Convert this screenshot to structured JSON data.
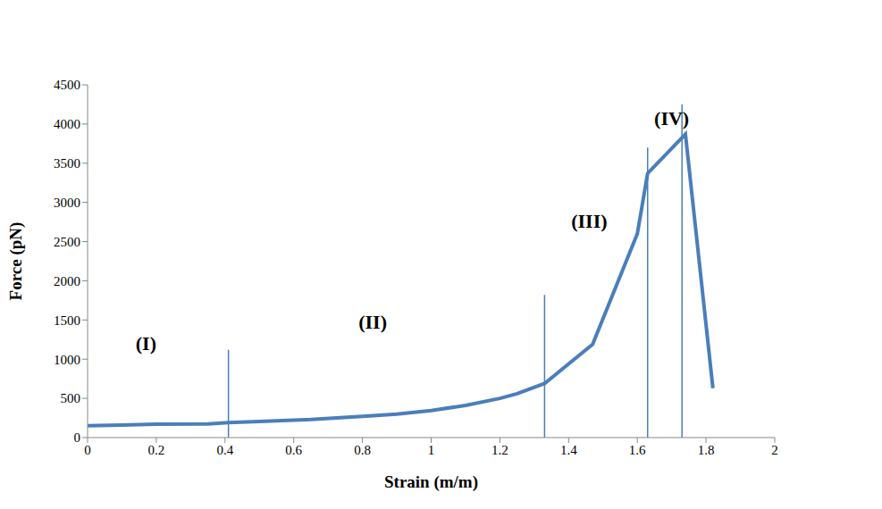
{
  "chart_data": {
    "type": "line",
    "x_label": "Strain (m/m)",
    "y_label": "Force (pN)",
    "x": [
      0,
      0.1,
      0.2,
      0.35,
      0.41,
      0.5,
      0.65,
      0.8,
      0.9,
      1.0,
      1.1,
      1.2,
      1.25,
      1.33,
      1.47,
      1.6,
      1.63,
      1.74,
      1.82
    ],
    "values": [
      150,
      160,
      170,
      175,
      190,
      205,
      230,
      270,
      300,
      345,
      410,
      500,
      560,
      690,
      1190,
      2600,
      3370,
      3870,
      630
    ],
    "color": "#4a7ebb",
    "marker": "none",
    "xlim": [
      0,
      2
    ],
    "xticks": [
      0,
      0.2,
      0.4,
      0.6,
      0.8,
      1,
      1.2,
      1.4,
      1.6,
      1.8,
      2
    ],
    "ylim": [
      0,
      4500
    ],
    "yticks": [
      0,
      500,
      1000,
      1500,
      2000,
      2500,
      3000,
      3500,
      4000,
      4500
    ],
    "grid": false,
    "boundaries": [
      {
        "x": 0.41,
        "y": 1120
      },
      {
        "x": 1.33,
        "y": 1820
      },
      {
        "x": 1.63,
        "y": 3700
      },
      {
        "x": 1.73,
        "y": 4250
      }
    ],
    "annotations": [
      {
        "text": "(I)",
        "x": 0.17,
        "y": 1200
      },
      {
        "text": "(II)",
        "x": 0.83,
        "y": 1480
      },
      {
        "text": "(III)",
        "x": 1.46,
        "y": 2770
      },
      {
        "text": "(IV)",
        "x": 1.7,
        "y": 4080
      }
    ]
  }
}
